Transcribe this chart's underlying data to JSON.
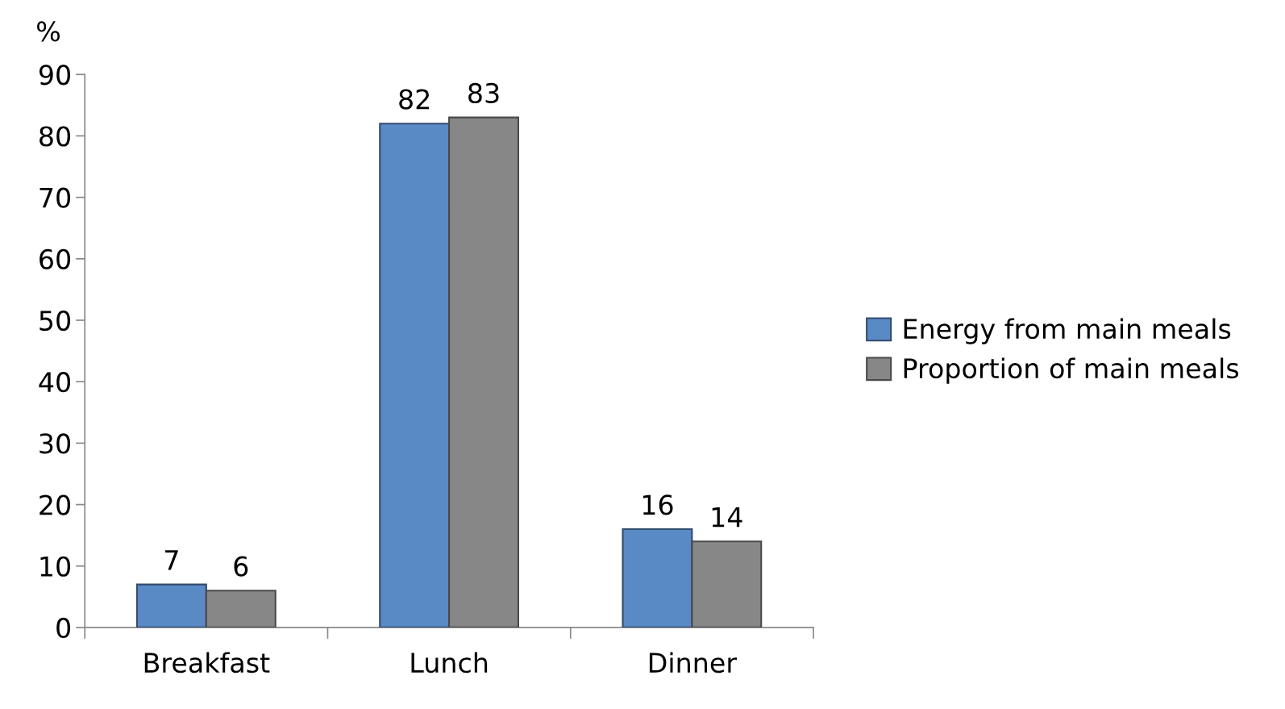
{
  "chart_data": {
    "type": "bar",
    "ylabel": "%",
    "categories": [
      "Breakfast",
      "Lunch",
      "Dinner"
    ],
    "series": [
      {
        "name": "Energy from main meals",
        "color": "#5a8ac6",
        "values": [
          7,
          82,
          16
        ]
      },
      {
        "name": "Proportion of main meals",
        "color": "#878787",
        "values": [
          6,
          83,
          14
        ]
      }
    ],
    "ylim": [
      0,
      90
    ],
    "yticks": [
      0,
      10,
      20,
      30,
      40,
      50,
      60,
      70,
      80,
      90
    ],
    "grid": false,
    "legend": "right",
    "data_labels": true
  }
}
